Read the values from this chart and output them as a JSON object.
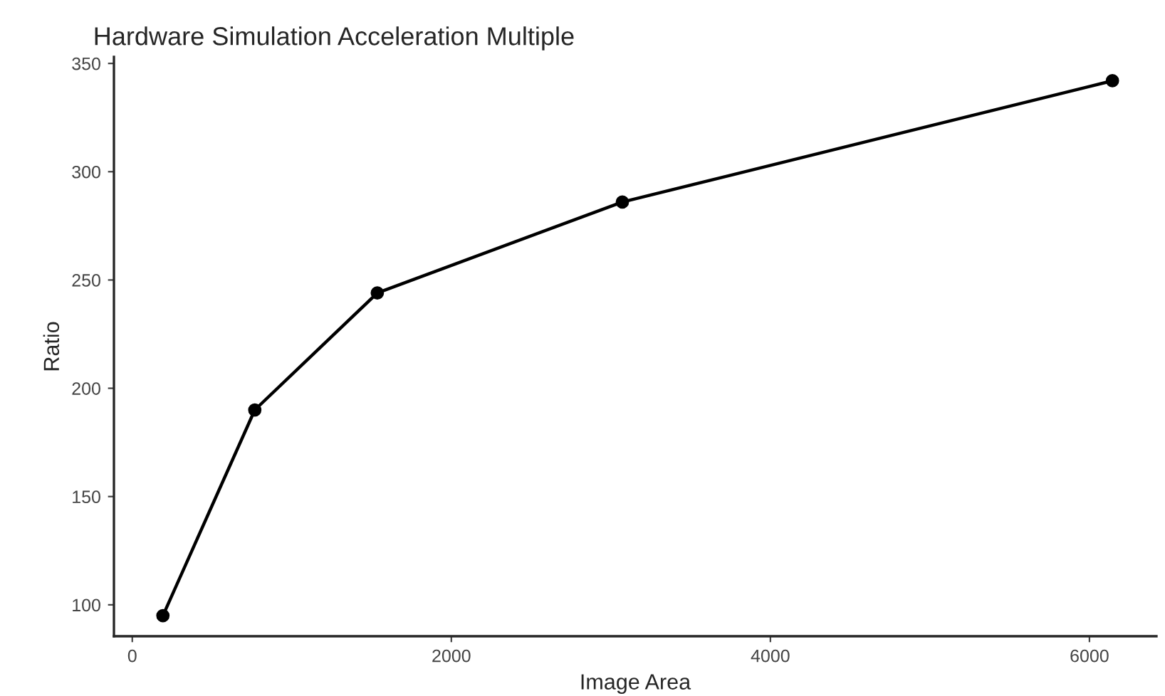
{
  "chart_data": {
    "type": "line",
    "title": "Hardware Simulation Acceleration Multiple",
    "xlabel": "Image Area",
    "ylabel": "Ratio",
    "x": [
      192,
      768,
      1536,
      3072,
      6144
    ],
    "series": [
      {
        "color": "#000000",
        "values": [
          95,
          190,
          244,
          286,
          342
        ]
      }
    ],
    "xlim": [
      -115,
      6420
    ],
    "ylim": [
      85.5,
      353
    ],
    "xticks": [
      0,
      2000,
      4000,
      6000
    ],
    "yticks": [
      100,
      150,
      200,
      250,
      300,
      350
    ],
    "grid": false,
    "marker": "circle",
    "line_style": "solid"
  }
}
